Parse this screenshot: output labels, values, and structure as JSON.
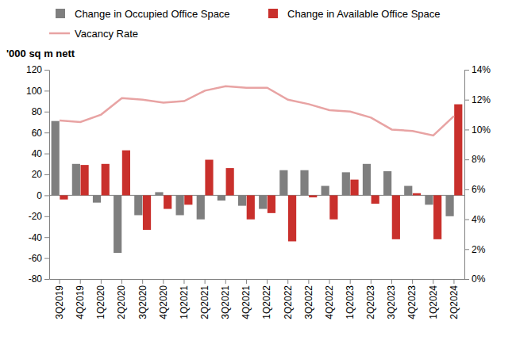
{
  "chart_data": {
    "type": "bar",
    "y_label": "'000 sq m nett",
    "categories": [
      "3Q2019",
      "4Q2019",
      "1Q2020",
      "2Q2020",
      "3Q2020",
      "4Q2020",
      "1Q2021",
      "2Q2021",
      "3Q2021",
      "4Q2021",
      "1Q2022",
      "2Q2022",
      "3Q2022",
      "4Q2022",
      "1Q2023",
      "2Q2023",
      "3Q2023",
      "4Q2023",
      "1Q2024",
      "2Q2024"
    ],
    "series": [
      {
        "name": "Change in Occupied Office Space",
        "type": "bar",
        "color": "#7f7f7f",
        "values": [
          71,
          30,
          -7,
          -55,
          -19,
          3,
          -19,
          -23,
          -5,
          -10,
          -13,
          24,
          24,
          9,
          22,
          30,
          23,
          9,
          -9,
          -20
        ]
      },
      {
        "name": "Change in Available Office Space",
        "type": "bar",
        "color": "#c9302c",
        "values": [
          -4,
          29,
          30,
          43,
          -33,
          -13,
          -9,
          34,
          26,
          -23,
          -17,
          -44,
          -2,
          -23,
          15,
          -8,
          -42,
          2,
          -42,
          87
        ]
      },
      {
        "name": "Vacancy Rate",
        "type": "line",
        "axis": "y2",
        "color": "#e8a3a3",
        "values": [
          10.6,
          10.5,
          11.0,
          12.1,
          12.0,
          11.8,
          11.9,
          12.6,
          12.9,
          12.8,
          12.8,
          12.0,
          11.7,
          11.3,
          11.2,
          10.8,
          10.0,
          9.9,
          9.6,
          10.9
        ]
      }
    ],
    "ylim": [
      -80,
      120
    ],
    "yticks": [
      -80,
      -60,
      -40,
      -20,
      0,
      20,
      40,
      60,
      80,
      100,
      120
    ],
    "y2lim": [
      0,
      14
    ],
    "y2ticks": [
      {
        "value": 0,
        "label": "0%"
      },
      {
        "value": 2,
        "label": "2%"
      },
      {
        "value": 4,
        "label": "4%"
      },
      {
        "value": 6,
        "label": "6%"
      },
      {
        "value": 8,
        "label": "8%"
      },
      {
        "value": 10,
        "label": "10%"
      },
      {
        "value": 12,
        "label": "12%"
      },
      {
        "value": 14,
        "label": "14%"
      }
    ],
    "grid": false,
    "legend": "top"
  }
}
